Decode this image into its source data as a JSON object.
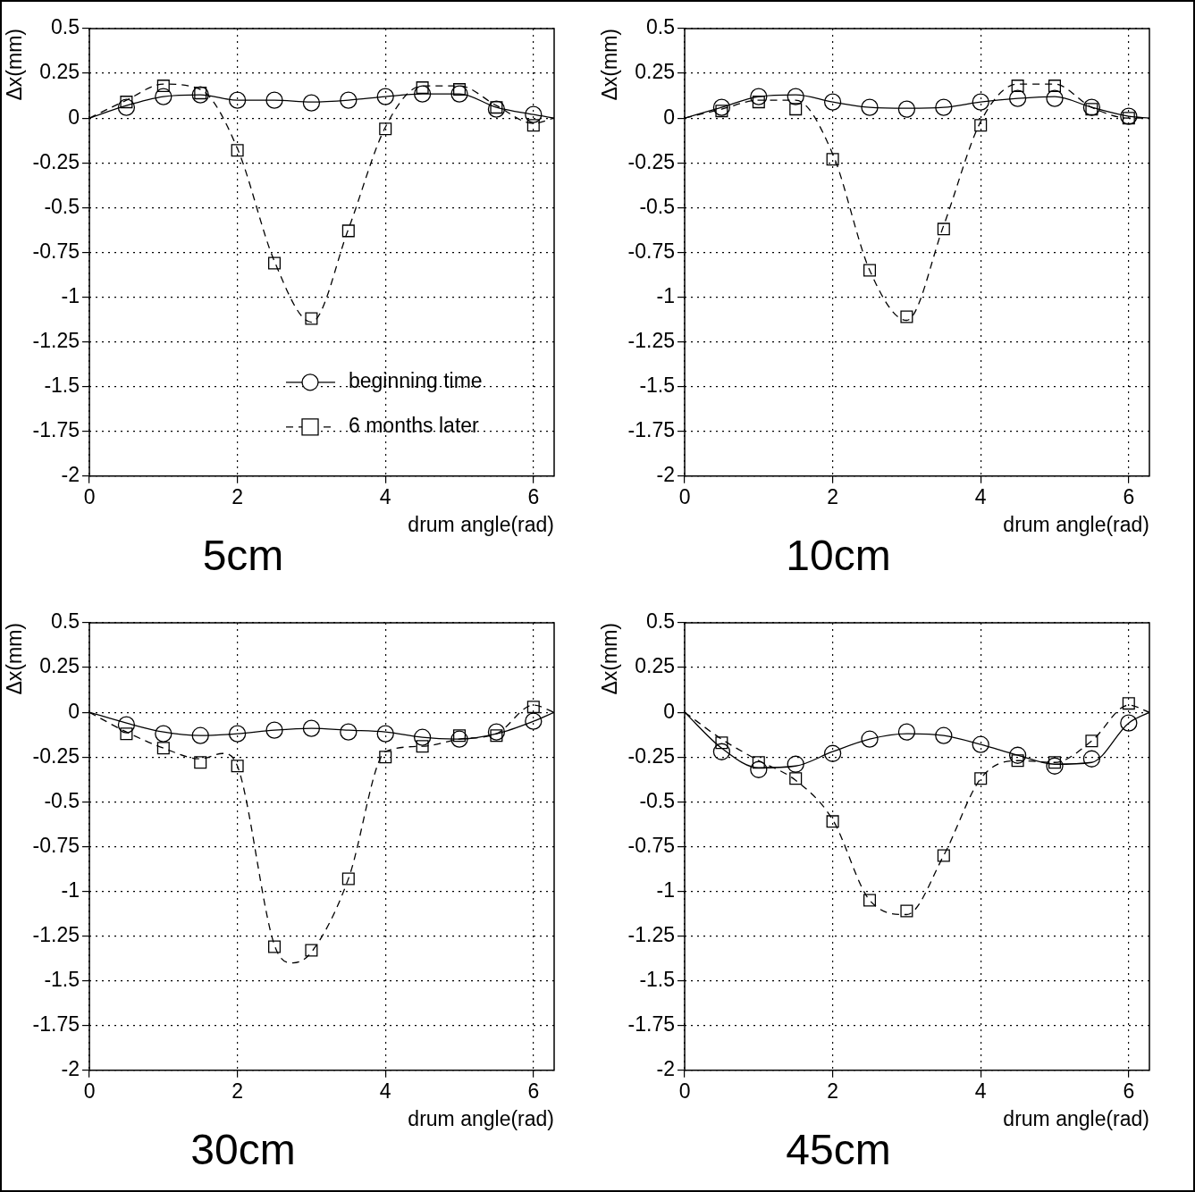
{
  "chart_data": [
    {
      "type": "scatter",
      "title": "5cm",
      "xlabel": "drum angle(rad)",
      "ylabel": "Δx(mm)",
      "xlim": [
        0,
        6.28
      ],
      "xticks": [
        0,
        2,
        4,
        6
      ],
      "ylim": [
        -2,
        0.5
      ],
      "yticks": [
        -2,
        -1.75,
        -1.5,
        -1.25,
        -1,
        -0.75,
        -0.5,
        -0.25,
        0,
        0.25,
        0.5
      ],
      "grid": true,
      "legend": "bottom right",
      "x": [
        0.5,
        1,
        1.5,
        2,
        2.5,
        3,
        3.5,
        4,
        4.5,
        5,
        5.5,
        6
      ],
      "series": [
        {
          "name": "beginning time",
          "type": "scatter",
          "marker": "circle",
          "line_style": "solid",
          "color": "#000000",
          "values": [
            0.06,
            0.12,
            0.13,
            0.1,
            0.1,
            0.085,
            0.1,
            0.12,
            0.135,
            0.135,
            0.05,
            0.02
          ]
        },
        {
          "name": "6 months later",
          "type": "scatter",
          "marker": "square",
          "line_style": "dashed",
          "color": "#000000",
          "values": [
            0.09,
            0.18,
            0.14,
            -0.18,
            -0.81,
            -1.12,
            -0.63,
            -0.06,
            0.17,
            0.16,
            0.06,
            -0.04
          ]
        },
        {
          "type": "line",
          "marker": "none",
          "line_style": "solid",
          "color": "#000000",
          "x": [
            0,
            0.5,
            1,
            1.5,
            2,
            2.5,
            3,
            3.5,
            4,
            4.5,
            5,
            5.5,
            6,
            6.28
          ],
          "values": [
            0,
            0.07,
            0.12,
            0.13,
            0.1,
            0.1,
            0.09,
            0.1,
            0.12,
            0.135,
            0.135,
            0.06,
            0.02,
            0
          ]
        },
        {
          "type": "line",
          "marker": "none",
          "line_style": "dashed",
          "color": "#000000",
          "x": [
            0,
            0.5,
            1,
            1.5,
            2,
            2.5,
            3,
            3.5,
            4,
            4.5,
            5,
            5.5,
            6,
            6.28
          ],
          "values": [
            0,
            0.1,
            0.19,
            0.16,
            -0.17,
            -0.8,
            -1.14,
            -0.62,
            -0.05,
            0.18,
            0.18,
            0.07,
            -0.03,
            0
          ]
        }
      ]
    },
    {
      "type": "scatter",
      "title": "10cm",
      "xlabel": "drum angle(rad)",
      "ylabel": "Δx(mm)",
      "xlim": [
        0,
        6.28
      ],
      "xticks": [
        0,
        2,
        4,
        6
      ],
      "ylim": [
        -2,
        0.5
      ],
      "yticks": [
        -2,
        -1.75,
        -1.5,
        -1.25,
        -1,
        -0.75,
        -0.5,
        -0.25,
        0,
        0.25,
        0.5
      ],
      "grid": true,
      "x": [
        0.5,
        1,
        1.5,
        2,
        2.5,
        3,
        3.5,
        4,
        4.5,
        5,
        5.5,
        6
      ],
      "series": [
        {
          "type": "scatter",
          "marker": "circle",
          "color": "#000000",
          "values": [
            0.06,
            0.12,
            0.12,
            0.09,
            0.06,
            0.05,
            0.06,
            0.09,
            0.11,
            0.11,
            0.06,
            0.01
          ]
        },
        {
          "type": "scatter",
          "marker": "square",
          "color": "#000000",
          "values": [
            0.04,
            0.09,
            0.05,
            -0.23,
            -0.85,
            -1.11,
            -0.62,
            -0.04,
            0.18,
            0.18,
            0.05,
            0
          ]
        },
        {
          "type": "line",
          "marker": "none",
          "line_style": "solid",
          "color": "#000000",
          "x": [
            0,
            0.5,
            1,
            1.5,
            2,
            2.5,
            3,
            3.5,
            4,
            4.5,
            5,
            5.5,
            6,
            6.28
          ],
          "values": [
            0,
            0.06,
            0.12,
            0.13,
            0.09,
            0.06,
            0.055,
            0.06,
            0.09,
            0.11,
            0.12,
            0.06,
            0.01,
            0
          ]
        },
        {
          "type": "line",
          "marker": "none",
          "line_style": "dashed",
          "color": "#000000",
          "x": [
            0,
            0.5,
            1,
            1.5,
            2,
            2.5,
            3,
            3.5,
            4,
            4.5,
            5,
            5.5,
            6,
            6.28
          ],
          "values": [
            0,
            0.05,
            0.1,
            0.1,
            -0.2,
            -0.85,
            -1.13,
            -0.6,
            -0.02,
            0.19,
            0.19,
            0.06,
            0,
            0
          ]
        }
      ]
    },
    {
      "type": "scatter",
      "title": "30cm",
      "xlabel": "drum angle(rad)",
      "ylabel": "Δx(mm)",
      "xlim": [
        0,
        6.28
      ],
      "xticks": [
        0,
        2,
        4,
        6
      ],
      "ylim": [
        -2,
        0.5
      ],
      "yticks": [
        -2,
        -1.75,
        -1.5,
        -1.25,
        -1,
        -0.75,
        -0.5,
        -0.25,
        0,
        0.25,
        0.5
      ],
      "grid": true,
      "x": [
        0.5,
        1,
        1.5,
        2,
        2.5,
        3,
        3.5,
        4,
        4.5,
        5,
        5.5,
        6
      ],
      "series": [
        {
          "type": "scatter",
          "marker": "circle",
          "color": "#000000",
          "values": [
            -0.07,
            -0.12,
            -0.13,
            -0.12,
            -0.1,
            -0.09,
            -0.11,
            -0.12,
            -0.14,
            -0.15,
            -0.11,
            -0.05
          ]
        },
        {
          "type": "scatter",
          "marker": "square",
          "color": "#000000",
          "values": [
            -0.12,
            -0.2,
            -0.28,
            -0.3,
            -1.31,
            -1.33,
            -0.93,
            -0.25,
            -0.19,
            -0.13,
            -0.13,
            0.03
          ]
        },
        {
          "type": "line",
          "marker": "none",
          "line_style": "solid",
          "color": "#000000",
          "x": [
            0,
            0.5,
            1,
            1.5,
            2,
            2.5,
            3,
            3.5,
            4,
            4.5,
            5,
            5.5,
            6,
            6.28
          ],
          "values": [
            0,
            -0.06,
            -0.11,
            -0.13,
            -0.12,
            -0.1,
            -0.09,
            -0.1,
            -0.11,
            -0.14,
            -0.15,
            -0.12,
            -0.05,
            0
          ]
        },
        {
          "type": "line",
          "marker": "none",
          "line_style": "dashed",
          "color": "#000000",
          "x": [
            0,
            0.5,
            1,
            1.5,
            1.8,
            2,
            2.5,
            2.75,
            3,
            3.5,
            4,
            4.5,
            5,
            5.5,
            6,
            6.28
          ],
          "values": [
            0,
            -0.11,
            -0.2,
            -0.26,
            -0.23,
            -0.3,
            -1.3,
            -1.4,
            -1.34,
            -0.93,
            -0.22,
            -0.19,
            -0.15,
            -0.12,
            0.04,
            0
          ]
        }
      ]
    },
    {
      "type": "scatter",
      "title": "45cm",
      "xlabel": "drum angle(rad)",
      "ylabel": "Δx(mm)",
      "xlim": [
        0,
        6.28
      ],
      "xticks": [
        0,
        2,
        4,
        6
      ],
      "ylim": [
        -2,
        0.5
      ],
      "yticks": [
        -2,
        -1.75,
        -1.5,
        -1.25,
        -1,
        -0.75,
        -0.5,
        -0.25,
        0,
        0.25,
        0.5
      ],
      "grid": true,
      "x": [
        0.5,
        1,
        1.5,
        2,
        2.5,
        3,
        3.5,
        4,
        4.5,
        5,
        5.5,
        6
      ],
      "series": [
        {
          "type": "scatter",
          "marker": "circle",
          "color": "#000000",
          "values": [
            -0.22,
            -0.32,
            -0.29,
            -0.23,
            -0.15,
            -0.11,
            -0.13,
            -0.18,
            -0.24,
            -0.3,
            -0.26,
            -0.06
          ]
        },
        {
          "type": "scatter",
          "marker": "square",
          "color": "#000000",
          "values": [
            -0.17,
            -0.28,
            -0.37,
            -0.61,
            -1.05,
            -1.11,
            -0.8,
            -0.37,
            -0.27,
            -0.28,
            -0.16,
            0.05
          ]
        },
        {
          "type": "line",
          "marker": "none",
          "line_style": "solid",
          "color": "#000000",
          "x": [
            0,
            0.5,
            1,
            1.5,
            2,
            2.5,
            3,
            3.5,
            4,
            4.5,
            5,
            5.5,
            6,
            6.28
          ],
          "values": [
            0,
            -0.2,
            -0.31,
            -0.3,
            -0.22,
            -0.15,
            -0.12,
            -0.13,
            -0.18,
            -0.24,
            -0.29,
            -0.28,
            -0.06,
            0
          ]
        },
        {
          "type": "line",
          "marker": "none",
          "line_style": "dashed",
          "color": "#000000",
          "x": [
            0,
            0.5,
            1,
            1.5,
            2,
            2.5,
            3,
            3.5,
            4,
            4.5,
            5,
            5.5,
            6,
            6.28
          ],
          "values": [
            0,
            -0.15,
            -0.27,
            -0.38,
            -0.6,
            -1.05,
            -1.13,
            -0.8,
            -0.37,
            -0.27,
            -0.28,
            -0.16,
            0.04,
            0
          ]
        }
      ]
    }
  ]
}
